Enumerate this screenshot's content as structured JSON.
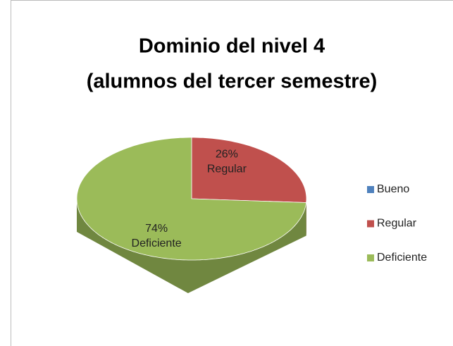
{
  "chart_data": {
    "type": "pie",
    "title": [
      "Dominio del nivel 4",
      "(alumnos del tercer semestre)"
    ],
    "categories": [
      "Bueno",
      "Regular",
      "Deficiente"
    ],
    "values": [
      0,
      26,
      74
    ],
    "value_labels": [
      null,
      "26%",
      "74%"
    ],
    "colors": [
      "#4f81bd",
      "#c0504d",
      "#9bbb59"
    ],
    "legend": "right"
  }
}
